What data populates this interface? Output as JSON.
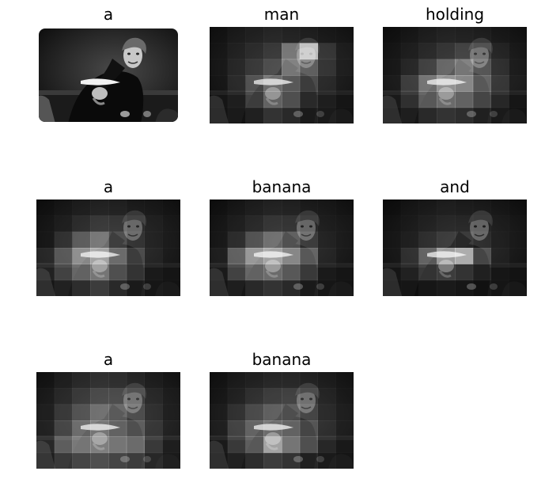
{
  "panels": [
    {
      "word": "a",
      "kind": "original",
      "attention": []
    },
    {
      "word": "man",
      "kind": "attention",
      "attention": [
        [
          0.05,
          0.08,
          0.1,
          0.12,
          0.1,
          0.08,
          0.06,
          0.05
        ],
        [
          0.06,
          0.1,
          0.14,
          0.2,
          0.55,
          0.95,
          0.2,
          0.08
        ],
        [
          0.06,
          0.12,
          0.2,
          0.3,
          0.6,
          0.4,
          0.18,
          0.07
        ],
        [
          0.05,
          0.14,
          0.35,
          0.55,
          0.45,
          0.3,
          0.12,
          0.06
        ],
        [
          0.05,
          0.1,
          0.3,
          0.5,
          0.4,
          0.2,
          0.1,
          0.05
        ],
        [
          0.04,
          0.08,
          0.15,
          0.25,
          0.2,
          0.12,
          0.08,
          0.04
        ]
      ]
    },
    {
      "word": "holding",
      "kind": "attention",
      "attention": [
        [
          0.04,
          0.06,
          0.08,
          0.1,
          0.09,
          0.07,
          0.05,
          0.04
        ],
        [
          0.05,
          0.08,
          0.12,
          0.18,
          0.25,
          0.22,
          0.1,
          0.05
        ],
        [
          0.06,
          0.12,
          0.25,
          0.45,
          0.6,
          0.35,
          0.15,
          0.06
        ],
        [
          0.08,
          0.25,
          0.55,
          0.75,
          0.7,
          0.45,
          0.2,
          0.07
        ],
        [
          0.07,
          0.2,
          0.45,
          0.55,
          0.5,
          0.35,
          0.15,
          0.06
        ],
        [
          0.05,
          0.1,
          0.2,
          0.25,
          0.22,
          0.15,
          0.08,
          0.04
        ]
      ]
    },
    {
      "word": "a",
      "kind": "attention",
      "attention": [
        [
          0.04,
          0.06,
          0.08,
          0.1,
          0.09,
          0.06,
          0.05,
          0.04
        ],
        [
          0.05,
          0.08,
          0.14,
          0.2,
          0.18,
          0.12,
          0.08,
          0.05
        ],
        [
          0.06,
          0.18,
          0.4,
          0.55,
          0.3,
          0.15,
          0.08,
          0.05
        ],
        [
          0.15,
          0.4,
          0.7,
          0.85,
          0.55,
          0.3,
          0.1,
          0.05
        ],
        [
          0.12,
          0.3,
          0.5,
          0.6,
          0.4,
          0.25,
          0.08,
          0.05
        ],
        [
          0.06,
          0.12,
          0.22,
          0.3,
          0.2,
          0.12,
          0.06,
          0.04
        ]
      ]
    },
    {
      "word": "banana",
      "kind": "attention",
      "attention": [
        [
          0.04,
          0.06,
          0.08,
          0.1,
          0.09,
          0.06,
          0.05,
          0.04
        ],
        [
          0.05,
          0.08,
          0.12,
          0.18,
          0.16,
          0.1,
          0.06,
          0.05
        ],
        [
          0.06,
          0.15,
          0.35,
          0.5,
          0.4,
          0.2,
          0.08,
          0.05
        ],
        [
          0.1,
          0.45,
          0.75,
          0.85,
          0.7,
          0.45,
          0.1,
          0.05
        ],
        [
          0.08,
          0.3,
          0.5,
          0.55,
          0.45,
          0.28,
          0.08,
          0.05
        ],
        [
          0.05,
          0.1,
          0.2,
          0.25,
          0.2,
          0.12,
          0.06,
          0.04
        ]
      ]
    },
    {
      "word": "and",
      "kind": "attention",
      "attention": [
        [
          0.03,
          0.05,
          0.06,
          0.07,
          0.06,
          0.05,
          0.04,
          0.03
        ],
        [
          0.04,
          0.06,
          0.08,
          0.1,
          0.09,
          0.07,
          0.05,
          0.04
        ],
        [
          0.05,
          0.08,
          0.14,
          0.2,
          0.18,
          0.12,
          0.06,
          0.04
        ],
        [
          0.06,
          0.18,
          0.45,
          0.8,
          0.9,
          0.35,
          0.08,
          0.04
        ],
        [
          0.05,
          0.12,
          0.25,
          0.3,
          0.25,
          0.15,
          0.06,
          0.04
        ],
        [
          0.04,
          0.06,
          0.1,
          0.12,
          0.1,
          0.07,
          0.05,
          0.03
        ]
      ]
    },
    {
      "word": "a",
      "kind": "attention",
      "attention": [
        [
          0.06,
          0.1,
          0.14,
          0.18,
          0.16,
          0.12,
          0.08,
          0.06
        ],
        [
          0.08,
          0.14,
          0.22,
          0.3,
          0.3,
          0.22,
          0.12,
          0.07
        ],
        [
          0.1,
          0.22,
          0.35,
          0.5,
          0.45,
          0.3,
          0.15,
          0.08
        ],
        [
          0.12,
          0.3,
          0.5,
          0.6,
          0.5,
          0.4,
          0.2,
          0.1
        ],
        [
          0.15,
          0.45,
          0.6,
          0.65,
          0.6,
          0.55,
          0.25,
          0.1
        ],
        [
          0.1,
          0.25,
          0.35,
          0.4,
          0.35,
          0.3,
          0.15,
          0.08
        ]
      ]
    },
    {
      "word": "banana",
      "kind": "attention",
      "attention": [
        [
          0.05,
          0.08,
          0.1,
          0.12,
          0.12,
          0.1,
          0.07,
          0.05
        ],
        [
          0.06,
          0.1,
          0.16,
          0.22,
          0.24,
          0.18,
          0.1,
          0.06
        ],
        [
          0.08,
          0.18,
          0.3,
          0.4,
          0.38,
          0.25,
          0.12,
          0.07
        ],
        [
          0.1,
          0.28,
          0.45,
          0.55,
          0.5,
          0.35,
          0.15,
          0.08
        ],
        [
          0.08,
          0.25,
          0.45,
          0.85,
          0.6,
          0.4,
          0.15,
          0.07
        ],
        [
          0.06,
          0.12,
          0.22,
          0.3,
          0.25,
          0.15,
          0.08,
          0.05
        ]
      ]
    }
  ]
}
